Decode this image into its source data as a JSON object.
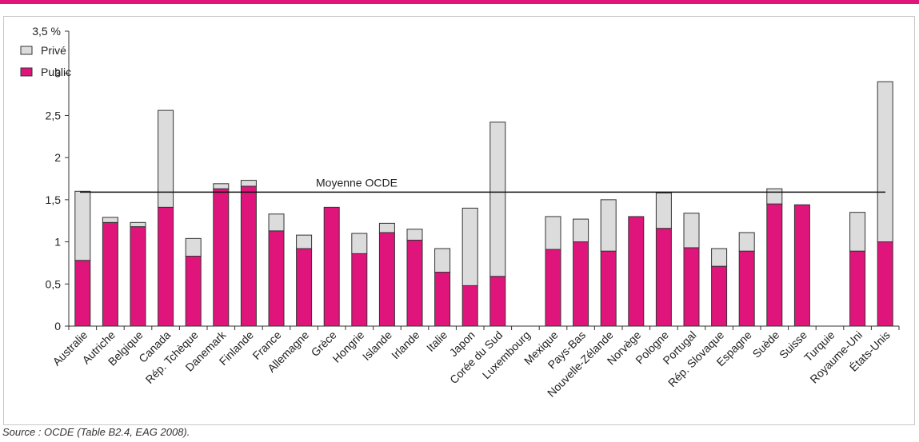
{
  "source_note": "Source : OCDE (Table B2.4, EAG 2008).",
  "colors": {
    "accent": "#e0157c",
    "public": "#e0157c",
    "private": "#dcdcdc",
    "outline": "#333333"
  },
  "chart_data": {
    "type": "bar",
    "stacked": true,
    "ylim": [
      0,
      3.5
    ],
    "yticks": [
      {
        "value": 0,
        "label": "0"
      },
      {
        "value": 0.5,
        "label": "0,5"
      },
      {
        "value": 1,
        "label": "1"
      },
      {
        "value": 1.5,
        "label": "1,5"
      },
      {
        "value": 2,
        "label": "2"
      },
      {
        "value": 2.5,
        "label": "2,5"
      },
      {
        "value": 3,
        "label": "3"
      },
      {
        "value": 3.5,
        "label": "3,5 %"
      }
    ],
    "grid": false,
    "legend_position": "top-left",
    "categories": [
      "Australie",
      "Autriche",
      "Belgique",
      "Canada",
      "Rép. Tchèque",
      "Danemark",
      "Finlande",
      "France",
      "Allemagne",
      "Grèce",
      "Hongrie",
      "Islande",
      "Irlande",
      "Italie",
      "Japon",
      "Corée du Sud",
      "Luxembourg",
      "Mexique",
      "Pays-Bas",
      "Nouvelle-Zélande",
      "Norvège",
      "Pologne",
      "Portugal",
      "Rép. Slovaque",
      "Espagne",
      "Suède",
      "Suisse",
      "Turquie",
      "Royaume-Uni",
      "États-Unis"
    ],
    "series": [
      {
        "name": "Public",
        "color": "#e0157c",
        "values": [
          0.78,
          1.23,
          1.18,
          1.41,
          0.83,
          1.63,
          1.66,
          1.13,
          0.92,
          1.41,
          0.86,
          1.11,
          1.02,
          0.64,
          0.48,
          0.59,
          null,
          0.91,
          1.0,
          0.89,
          1.3,
          1.16,
          0.93,
          0.71,
          0.89,
          1.45,
          1.44,
          null,
          0.89,
          1.0
        ]
      },
      {
        "name": "Privé",
        "color": "#dcdcdc",
        "values": [
          0.82,
          0.06,
          0.05,
          1.15,
          0.21,
          0.06,
          0.07,
          0.2,
          0.16,
          0.0,
          0.24,
          0.11,
          0.13,
          0.28,
          0.92,
          1.83,
          null,
          0.39,
          0.27,
          0.61,
          0.0,
          0.42,
          0.41,
          0.21,
          0.22,
          0.18,
          0.0,
          null,
          0.46,
          1.9
        ]
      }
    ],
    "legend": [
      {
        "label": "Privé",
        "color": "#dcdcdc"
      },
      {
        "label": "Public",
        "color": "#e0157c"
      }
    ],
    "reference_line": {
      "label": "Moyenne OCDE",
      "value": 1.59
    }
  }
}
